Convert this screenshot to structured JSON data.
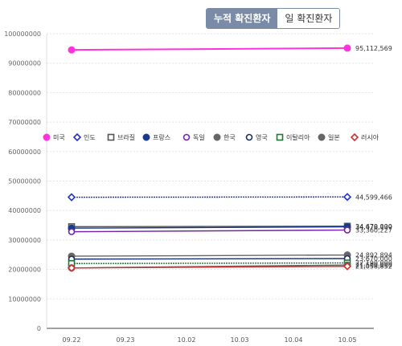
{
  "toggle": {
    "cumulative_label": "누적 확진환자",
    "daily_label": "일 확진환자",
    "selected": "cumulative"
  },
  "chart_data": {
    "type": "line",
    "x": [
      "09.22",
      "09.23",
      "10.02",
      "10.03",
      "10.04",
      "10.05"
    ],
    "ylim": [
      0,
      100000000
    ],
    "yticks": [
      0,
      10000000,
      20000000,
      30000000,
      40000000,
      50000000,
      60000000,
      70000000,
      80000000,
      90000000,
      100000000
    ],
    "ytick_labels": [
      "0",
      "10000000",
      "20000000",
      "30000000",
      "40000000",
      "50000000",
      "60000000",
      "70000000",
      "80000000",
      "90000000",
      "100000000"
    ],
    "legend_position": "top-left",
    "grid": "horizontal dashed",
    "series": [
      {
        "name": "미국",
        "color": "#ff33dd",
        "marker": "circle-filled",
        "first_value": 94500000,
        "last_value": 95112569,
        "end_label": "95,112,569"
      },
      {
        "name": "인도",
        "color": "#2233cc",
        "marker": "diamond-open",
        "first_value": 44500000,
        "last_value": 44599466,
        "end_label": "44,599,466"
      },
      {
        "name": "브라질",
        "color": "#555555",
        "marker": "square-open",
        "first_value": 34500000,
        "last_value": 34670000,
        "end_label": "34,670,000"
      },
      {
        "name": "프랑스",
        "color": "#1a3a8c",
        "marker": "circle-filled",
        "first_value": 34000000,
        "last_value": 34470000,
        "end_label": "34,478,139"
      },
      {
        "name": "독일",
        "color": "#7722aa",
        "marker": "circle-open",
        "first_value": 32800000,
        "last_value": 33360000,
        "end_label": "33,360,227"
      },
      {
        "name": "한국",
        "color": "#666666",
        "marker": "circle-filled",
        "first_value": 24500000,
        "last_value": 24890000,
        "end_label": "24,892,894"
      },
      {
        "name": "영국",
        "color": "#1a2f6a",
        "marker": "circle-open",
        "first_value": 23500000,
        "last_value": 23670000,
        "end_label": "23,670,000"
      },
      {
        "name": "이탈리아",
        "color": "#227733",
        "marker": "square-open",
        "first_value": 22000000,
        "last_value": 22190000,
        "end_label": "22,190,000"
      },
      {
        "name": "일본",
        "color": "#666666",
        "marker": "circle-filled",
        "first_value": 20500000,
        "last_value": 21500000,
        "end_label": "21,500,000"
      },
      {
        "name": "러시아",
        "color": "#cc3333",
        "marker": "diamond-open",
        "first_value": 20500000,
        "last_value": 21050000,
        "end_label": "21,058,852"
      }
    ]
  }
}
